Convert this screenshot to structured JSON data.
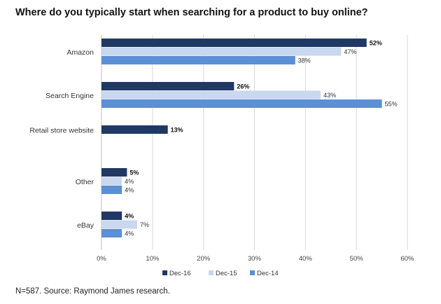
{
  "chart_data": {
    "type": "bar",
    "orientation": "horizontal",
    "title": "Where do you typically start when searching for a product to buy online?",
    "categories": [
      "Amazon",
      "Search Engine",
      "Retail store website",
      "Other",
      "eBay"
    ],
    "series": [
      {
        "name": "Dec-16",
        "color": "#1f3864",
        "values": [
          52,
          26,
          13,
          5,
          4
        ],
        "labels": [
          "52%",
          "26%",
          "13%",
          "5%",
          "4%"
        ]
      },
      {
        "name": "Dec-15",
        "color": "#c9d7ef",
        "values": [
          47,
          43,
          null,
          4,
          7
        ],
        "labels": [
          "47%",
          "43%",
          "",
          "4%",
          "7%"
        ]
      },
      {
        "name": "Dec-14",
        "color": "#5b8fd6",
        "values": [
          38,
          55,
          null,
          4,
          4
        ],
        "labels": [
          "38%",
          "55%",
          "",
          "4%",
          "4%"
        ]
      }
    ],
    "xlim": [
      0,
      60
    ],
    "xticks": [
      "0%",
      "10%",
      "20%",
      "30%",
      "40%",
      "50%",
      "60%"
    ],
    "grid": true,
    "legend": "bottom"
  },
  "footnote": "N=587.  Source: Raymond James research."
}
